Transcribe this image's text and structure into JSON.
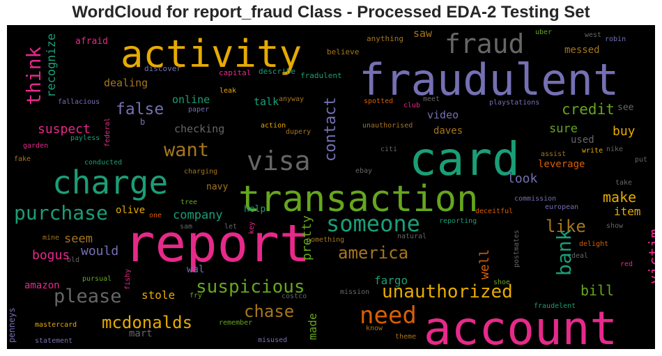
{
  "title": "WordCloud for report_fraud Class - Processed EDA-2 Testing Set",
  "chart_data": {
    "type": "wordcloud",
    "title": "WordCloud for report_fraud Class - Processed EDA-2 Testing Set",
    "background": "#000000",
    "palette": "Dark2",
    "words": [
      {
        "text": "report",
        "color": "#e7298a"
      },
      {
        "text": "account",
        "color": "#e7298a"
      },
      {
        "text": "fraudulent",
        "color": "#7570b3"
      },
      {
        "text": "card",
        "color": "#1b9e77"
      },
      {
        "text": "transaction",
        "color": "#66a61e"
      },
      {
        "text": "activity",
        "color": "#e6ab02"
      },
      {
        "text": "charge",
        "color": "#1b9e77"
      },
      {
        "text": "visa",
        "color": "#666666"
      },
      {
        "text": "fraud",
        "color": "#666666"
      },
      {
        "text": "someone",
        "color": "#1b9e77"
      },
      {
        "text": "purchase",
        "color": "#1b9e77"
      },
      {
        "text": "need",
        "color": "#d95f02"
      },
      {
        "text": "unauthorized",
        "color": "#e6ab02"
      },
      {
        "text": "suspicious",
        "color": "#66a61e"
      },
      {
        "text": "want",
        "color": "#a6761d"
      },
      {
        "text": "please",
        "color": "#666666"
      },
      {
        "text": "think",
        "color": "#e7298a"
      },
      {
        "text": "bank",
        "color": "#1b9e77"
      },
      {
        "text": "america",
        "color": "#a6761d"
      },
      {
        "text": "contact",
        "color": "#7570b3"
      },
      {
        "text": "mcdonalds",
        "color": "#e6ab02"
      },
      {
        "text": "chase",
        "color": "#a6761d"
      },
      {
        "text": "like",
        "color": "#a6761d"
      },
      {
        "text": "false",
        "color": "#7570b3"
      },
      {
        "text": "credit",
        "color": "#66a61e"
      },
      {
        "text": "victim",
        "color": "#e7298a"
      },
      {
        "text": "bill",
        "color": "#66a61e"
      },
      {
        "text": "make",
        "color": "#e6ab02"
      },
      {
        "text": "pretty",
        "color": "#66a61e"
      },
      {
        "text": "well",
        "color": "#d95f02"
      },
      {
        "text": "recognize",
        "color": "#1b9e77"
      },
      {
        "text": "suspect",
        "color": "#e7298a"
      },
      {
        "text": "bogus",
        "color": "#e7298a"
      },
      {
        "text": "would",
        "color": "#7570b3"
      },
      {
        "text": "buy",
        "color": "#e6ab02"
      },
      {
        "text": "company",
        "color": "#1b9e77"
      },
      {
        "text": "look",
        "color": "#7570b3"
      },
      {
        "text": "sure",
        "color": "#66a61e"
      },
      {
        "text": "seem",
        "color": "#a6761d"
      },
      {
        "text": "made",
        "color": "#66a61e"
      },
      {
        "text": "fargo",
        "color": "#1b9e77"
      },
      {
        "text": "stole",
        "color": "#e6ab02"
      },
      {
        "text": "item",
        "color": "#e6ab02"
      },
      {
        "text": "leverage",
        "color": "#d95f02"
      },
      {
        "text": "video",
        "color": "#7570b3"
      },
      {
        "text": "checking",
        "color": "#666666"
      },
      {
        "text": "online",
        "color": "#1b9e77"
      },
      {
        "text": "talk",
        "color": "#1b9e77"
      },
      {
        "text": "messed",
        "color": "#a6761d"
      },
      {
        "text": "saw",
        "color": "#a6761d"
      },
      {
        "text": "dealing",
        "color": "#a6761d"
      },
      {
        "text": "amazon",
        "color": "#e7298a"
      },
      {
        "text": "olive",
        "color": "#e6ab02"
      },
      {
        "text": "navy",
        "color": "#a6761d"
      },
      {
        "text": "help",
        "color": "#1b9e77"
      },
      {
        "text": "daves",
        "color": "#a6761d"
      },
      {
        "text": "used",
        "color": "#666666"
      },
      {
        "text": "mart",
        "color": "#666666"
      },
      {
        "text": "wal",
        "color": "#7570b3"
      },
      {
        "text": "afraid",
        "color": "#e7298a"
      },
      {
        "text": "penneys",
        "color": "#7570b3"
      },
      {
        "text": "see",
        "color": "#666666"
      },
      {
        "text": "b",
        "color": "#7570b3"
      },
      {
        "text": "discover",
        "color": "#7570b3"
      },
      {
        "text": "capital",
        "color": "#e7298a"
      },
      {
        "text": "describe",
        "color": "#1b9e77"
      },
      {
        "text": "fradulent",
        "color": "#1b9e77"
      },
      {
        "text": "believe",
        "color": "#a6761d"
      },
      {
        "text": "anything",
        "color": "#a6761d"
      },
      {
        "text": "uber",
        "color": "#66a61e"
      },
      {
        "text": "west",
        "color": "#666666"
      },
      {
        "text": "robin",
        "color": "#7570b3"
      },
      {
        "text": "fallacious",
        "color": "#7570b3"
      },
      {
        "text": "leak",
        "color": "#e6ab02"
      },
      {
        "text": "paper",
        "color": "#7570b3"
      },
      {
        "text": "anyway",
        "color": "#a6761d"
      },
      {
        "text": "spotted",
        "color": "#d95f02"
      },
      {
        "text": "club",
        "color": "#e7298a"
      },
      {
        "text": "meet",
        "color": "#666666"
      },
      {
        "text": "playstations",
        "color": "#7570b3"
      },
      {
        "text": "unauthorised",
        "color": "#a6761d"
      },
      {
        "text": "action",
        "color": "#e6ab02"
      },
      {
        "text": "dupery",
        "color": "#a6761d"
      },
      {
        "text": "citi",
        "color": "#666666"
      },
      {
        "text": "payless",
        "color": "#1b9e77"
      },
      {
        "text": "federal",
        "color": "#e7298a"
      },
      {
        "text": "garden",
        "color": "#e7298a"
      },
      {
        "text": "fake",
        "color": "#a6761d"
      },
      {
        "text": "conducted",
        "color": "#1b9e77"
      },
      {
        "text": "charging",
        "color": "#a6761d"
      },
      {
        "text": "ebay",
        "color": "#666666"
      },
      {
        "text": "assist",
        "color": "#a6761d"
      },
      {
        "text": "write",
        "color": "#e6ab02"
      },
      {
        "text": "nike",
        "color": "#666666"
      },
      {
        "text": "put",
        "color": "#666666"
      },
      {
        "text": "tree",
        "color": "#66a61e"
      },
      {
        "text": "take",
        "color": "#666666"
      },
      {
        "text": "commission",
        "color": "#7570b3"
      },
      {
        "text": "european",
        "color": "#7570b3"
      },
      {
        "text": "deceitful",
        "color": "#d95f02"
      },
      {
        "text": "one",
        "color": "#d95f02"
      },
      {
        "text": "sam",
        "color": "#666666"
      },
      {
        "text": "let",
        "color": "#666666"
      },
      {
        "text": "key",
        "color": "#e7298a"
      },
      {
        "text": "reporting",
        "color": "#1b9e77"
      },
      {
        "text": "show",
        "color": "#666666"
      },
      {
        "text": "mine",
        "color": "#a6761d"
      },
      {
        "text": "something",
        "color": "#a6761d"
      },
      {
        "text": "natural",
        "color": "#666666"
      },
      {
        "text": "postmates",
        "color": "#666666"
      },
      {
        "text": "delight",
        "color": "#d95f02"
      },
      {
        "text": "old",
        "color": "#666666"
      },
      {
        "text": "deal",
        "color": "#666666"
      },
      {
        "text": "red",
        "color": "#e7298a"
      },
      {
        "text": "pursual",
        "color": "#66a61e"
      },
      {
        "text": "fishy",
        "color": "#e7298a"
      },
      {
        "text": "mission",
        "color": "#666666"
      },
      {
        "text": "shoe",
        "color": "#66a61e"
      },
      {
        "text": "fry",
        "color": "#66a61e"
      },
      {
        "text": "costco",
        "color": "#666666"
      },
      {
        "text": "fraudelent",
        "color": "#1b9e77"
      },
      {
        "text": "remember",
        "color": "#66a61e"
      },
      {
        "text": "know",
        "color": "#a6761d"
      },
      {
        "text": "mastercard",
        "color": "#e6ab02"
      },
      {
        "text": "misused",
        "color": "#7570b3"
      },
      {
        "text": "theme",
        "color": "#a6761d"
      },
      {
        "text": "statement",
        "color": "#7570b3"
      }
    ]
  }
}
